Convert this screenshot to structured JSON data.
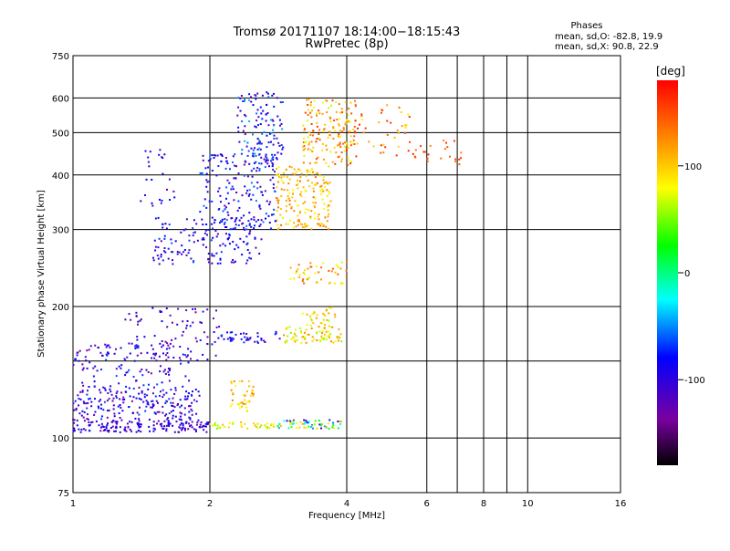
{
  "chart_data": {
    "type": "scatter",
    "title": "Tromsø 20171107 18:14:00−18:15:43",
    "subtitle": "RwPretec (8p)",
    "xlabel": "Frequency [MHz]",
    "ylabel": "Stationary phase Virtual Height [km]",
    "x_scale": "log",
    "y_scale": "log",
    "xlim": [
      1,
      16
    ],
    "ylim": [
      75,
      750
    ],
    "x_ticks": [
      1,
      2,
      4,
      6,
      8,
      10,
      16
    ],
    "x_minor_ticks": [
      7,
      9
    ],
    "y_ticks": [
      75,
      100,
      200,
      300,
      400,
      500,
      600,
      750
    ],
    "y_minor_ticks": [
      150
    ],
    "grid": true,
    "phase_box": {
      "heading": "Phases",
      "line1": "mean, sd,O: -82.8, 19.9",
      "line2": "mean, sd,X:  90.8, 22.9"
    },
    "colorbar": {
      "label": "[deg]",
      "range": [
        -180,
        180
      ],
      "ticks": [
        100,
        0,
        -100
      ],
      "colormap": [
        "#000000",
        "#7a00a0",
        "#0000ff",
        "#00ffff",
        "#00ff00",
        "#ffff00",
        "#ff7f00",
        "#ff0000"
      ]
    },
    "clusters": [
      {
        "x_range": [
          1.0,
          2.0
        ],
        "y_range": [
          103,
          110
        ],
        "phase_range": [
          -130,
          -70
        ],
        "count": 160
      },
      {
        "x_range": [
          1.0,
          1.9
        ],
        "y_range": [
          110,
          130
        ],
        "phase_range": [
          -130,
          -60
        ],
        "count": 200
      },
      {
        "x_range": [
          1.0,
          1.8
        ],
        "y_range": [
          130,
          165
        ],
        "phase_range": [
          -130,
          -60
        ],
        "count": 120
      },
      {
        "x_range": [
          1.3,
          2.1
        ],
        "y_range": [
          150,
          200
        ],
        "phase_range": [
          -130,
          -70
        ],
        "count": 90
      },
      {
        "x_range": [
          1.5,
          2.6
        ],
        "y_range": [
          250,
          320
        ],
        "phase_range": [
          -120,
          -60
        ],
        "count": 160
      },
      {
        "x_range": [
          1.9,
          2.8
        ],
        "y_range": [
          300,
          450
        ],
        "phase_range": [
          -120,
          -50
        ],
        "count": 180
      },
      {
        "x_range": [
          2.3,
          2.9
        ],
        "y_range": [
          430,
          620
        ],
        "phase_range": [
          -120,
          -40
        ],
        "count": 120
      },
      {
        "x_range": [
          1.4,
          1.7
        ],
        "y_range": [
          330,
          460
        ],
        "phase_range": [
          -120,
          -70
        ],
        "count": 25
      },
      {
        "x_range": [
          2.1,
          2.9
        ],
        "y_range": [
          165,
          175
        ],
        "phase_range": [
          -120,
          -60
        ],
        "count": 40
      },
      {
        "x_range": [
          2.0,
          2.8
        ],
        "y_range": [
          105,
          109
        ],
        "phase_range": [
          40,
          110
        ],
        "count": 40
      },
      {
        "x_range": [
          2.2,
          2.5
        ],
        "y_range": [
          115,
          135
        ],
        "phase_range": [
          70,
          130
        ],
        "count": 40
      },
      {
        "x_range": [
          2.8,
          3.9
        ],
        "y_range": [
          105,
          110
        ],
        "phase_range": [
          -120,
          120
        ],
        "count": 60
      },
      {
        "x_range": [
          2.9,
          3.9
        ],
        "y_range": [
          165,
          180
        ],
        "phase_range": [
          50,
          130
        ],
        "count": 80
      },
      {
        "x_range": [
          3.2,
          3.8
        ],
        "y_range": [
          180,
          200
        ],
        "phase_range": [
          60,
          120
        ],
        "count": 30
      },
      {
        "x_range": [
          3.0,
          4.0
        ],
        "y_range": [
          225,
          255
        ],
        "phase_range": [
          60,
          150
        ],
        "count": 50
      },
      {
        "x_range": [
          2.8,
          3.7
        ],
        "y_range": [
          300,
          420
        ],
        "phase_range": [
          70,
          140
        ],
        "count": 180
      },
      {
        "x_range": [
          3.2,
          4.2
        ],
        "y_range": [
          420,
          600
        ],
        "phase_range": [
          60,
          160
        ],
        "count": 150
      },
      {
        "x_range": [
          3.8,
          5.5
        ],
        "y_range": [
          440,
          580
        ],
        "phase_range": [
          80,
          170
        ],
        "count": 60
      },
      {
        "x_range": [
          5.5,
          7.2
        ],
        "y_range": [
          420,
          480
        ],
        "phase_range": [
          120,
          170
        ],
        "count": 25
      }
    ]
  }
}
